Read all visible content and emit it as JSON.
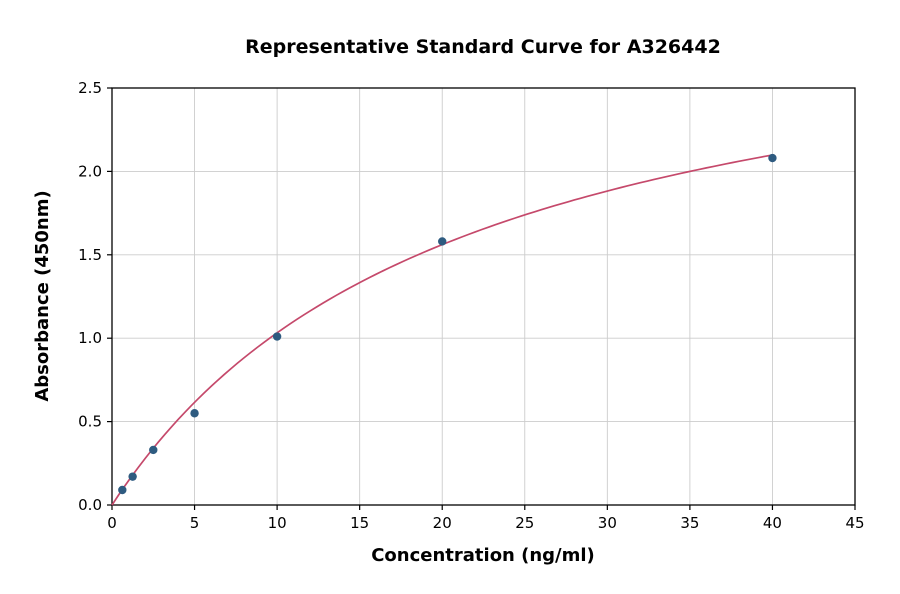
{
  "chart_data": {
    "type": "scatter",
    "title": "Representative Standard Curve for A326442",
    "xlabel": "Concentration (ng/ml)",
    "ylabel": "Absorbance (450nm)",
    "xlim": [
      0,
      45
    ],
    "ylim": [
      0,
      2.5
    ],
    "x_ticks": [
      0,
      5,
      10,
      15,
      20,
      25,
      30,
      35,
      40,
      45
    ],
    "x_tick_labels": [
      "0",
      "5",
      "10",
      "15",
      "20",
      "25",
      "30",
      "35",
      "40",
      "45"
    ],
    "y_ticks": [
      0,
      0.5,
      1.0,
      1.5,
      2.0,
      2.5
    ],
    "y_tick_labels": [
      "0.0",
      "0.5",
      "1.0",
      "1.5",
      "2.0",
      "2.5"
    ],
    "grid": true,
    "legend": "none",
    "points": {
      "x": [
        0.625,
        1.25,
        2.5,
        5,
        10,
        20,
        40
      ],
      "y": [
        0.09,
        0.17,
        0.33,
        0.55,
        1.01,
        1.58,
        2.08
      ]
    },
    "fit_curve": {
      "model": "y = a*x / (b + x)",
      "a": 3.2,
      "b": 21,
      "x_range": [
        0,
        40
      ]
    },
    "colors": {
      "point": "#2e5b80",
      "curve": "#c5496b",
      "grid": "#cccccc",
      "frame": "#000000",
      "background": "#ffffff"
    }
  }
}
